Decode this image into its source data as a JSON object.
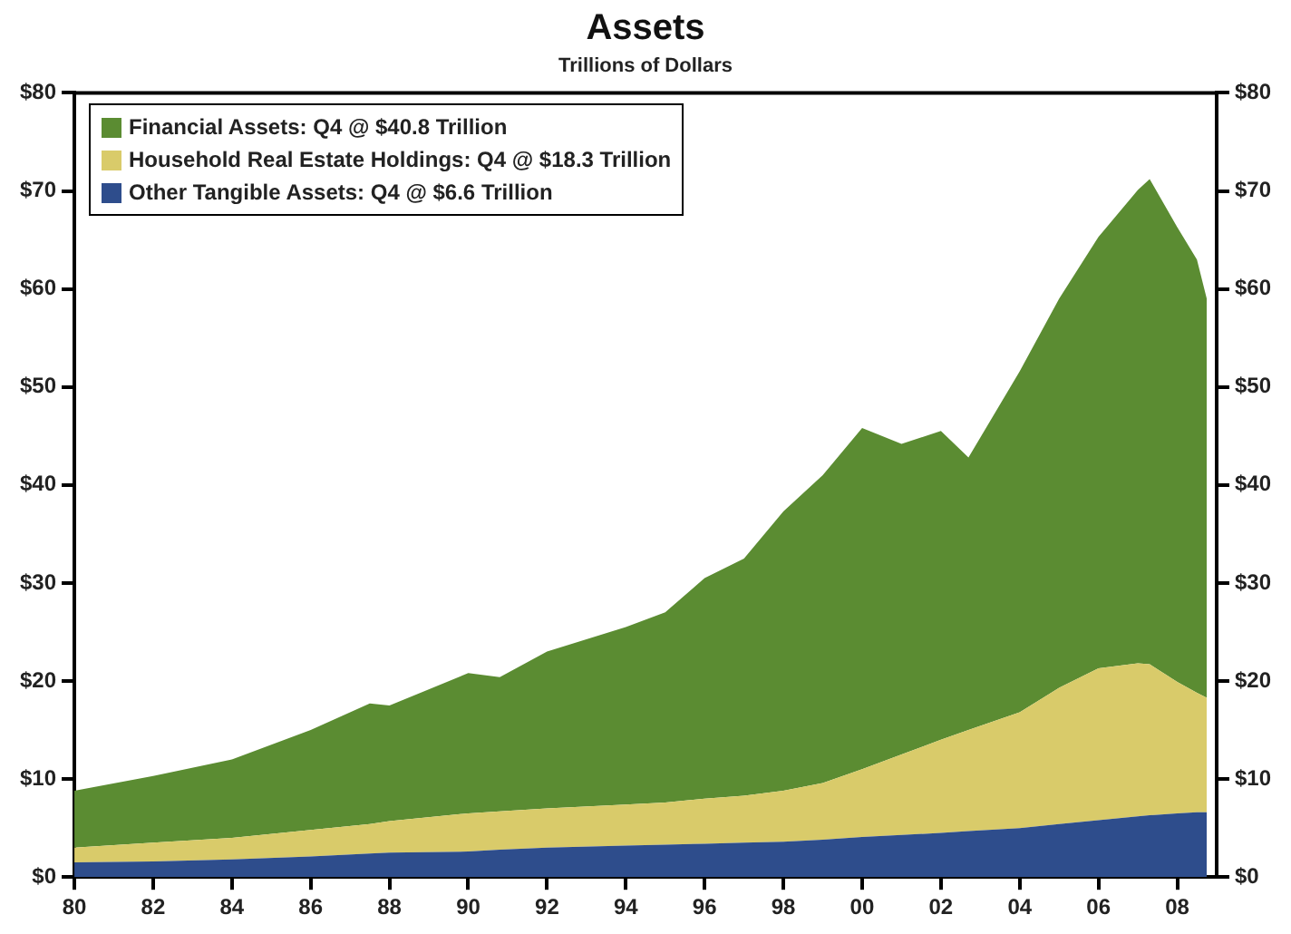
{
  "chart_data": {
    "type": "area",
    "stacked": true,
    "title": "Assets",
    "subtitle": "Trillions of Dollars",
    "x": [
      1980,
      1982,
      1984,
      1986,
      1987.5,
      1988,
      1990,
      1990.8,
      1992,
      1994,
      1995,
      1996,
      1997,
      1998,
      1999,
      2000,
      2001,
      2002,
      2002.7,
      2004,
      2005,
      2006,
      2007,
      2007.3,
      2008,
      2008.5,
      2008.75
    ],
    "series": [
      {
        "name": "Other Tangible Assets: Q4 @ $6.6 Trillion",
        "color": "#2e4d8c",
        "values": [
          1.5,
          1.6,
          1.8,
          2.1,
          2.4,
          2.5,
          2.6,
          2.8,
          3.0,
          3.2,
          3.3,
          3.4,
          3.5,
          3.6,
          3.8,
          4.1,
          4.3,
          4.5,
          4.7,
          5.0,
          5.4,
          5.8,
          6.2,
          6.3,
          6.5,
          6.6,
          6.6
        ]
      },
      {
        "name": "Household Real Estate Holdings: Q4 @ $18.3 Trillion",
        "color": "#d9cb6a",
        "values": [
          1.5,
          1.9,
          2.2,
          2.7,
          3.0,
          3.2,
          3.9,
          3.9,
          4.0,
          4.2,
          4.3,
          4.6,
          4.8,
          5.2,
          5.8,
          6.9,
          8.2,
          9.5,
          10.3,
          11.8,
          13.9,
          15.5,
          15.6,
          15.4,
          13.4,
          12.2,
          11.7
        ]
      },
      {
        "name": "Financial Assets: Q4 @ $40.8 Trillion",
        "color": "#5b8c32",
        "values": [
          5.8,
          6.8,
          8.0,
          10.2,
          12.3,
          11.8,
          14.3,
          13.7,
          16.0,
          18.1,
          19.4,
          22.5,
          24.2,
          28.5,
          31.4,
          34.8,
          31.7,
          31.5,
          27.8,
          34.8,
          39.7,
          44.0,
          48.3,
          49.5,
          46.4,
          44.2,
          40.7
        ]
      }
    ],
    "xlim": [
      1980,
      2009
    ],
    "xticks": [
      {
        "value": 1980,
        "label": "80"
      },
      {
        "value": 1982,
        "label": "82"
      },
      {
        "value": 1984,
        "label": "84"
      },
      {
        "value": 1986,
        "label": "86"
      },
      {
        "value": 1988,
        "label": "88"
      },
      {
        "value": 1990,
        "label": "90"
      },
      {
        "value": 1992,
        "label": "92"
      },
      {
        "value": 1994,
        "label": "94"
      },
      {
        "value": 1996,
        "label": "96"
      },
      {
        "value": 1998,
        "label": "98"
      },
      {
        "value": 2000,
        "label": "00"
      },
      {
        "value": 2002,
        "label": "02"
      },
      {
        "value": 2004,
        "label": "04"
      },
      {
        "value": 2006,
        "label": "06"
      },
      {
        "value": 2008,
        "label": "08"
      }
    ],
    "ylim": [
      0,
      80
    ],
    "yticks": [
      {
        "value": 0,
        "label": "$0"
      },
      {
        "value": 10,
        "label": "$10"
      },
      {
        "value": 20,
        "label": "$20"
      },
      {
        "value": 30,
        "label": "$30"
      },
      {
        "value": 40,
        "label": "$40"
      },
      {
        "value": 50,
        "label": "$50"
      },
      {
        "value": 60,
        "label": "$60"
      },
      {
        "value": 70,
        "label": "$70"
      },
      {
        "value": 80,
        "label": "$80"
      }
    ],
    "y2lim": [
      0,
      80
    ],
    "y2ticks": [
      {
        "value": 0,
        "label": "$0"
      },
      {
        "value": 10,
        "label": "$10"
      },
      {
        "value": 20,
        "label": "$20"
      },
      {
        "value": 30,
        "label": "$30"
      },
      {
        "value": 40,
        "label": "$40"
      },
      {
        "value": 50,
        "label": "$50"
      },
      {
        "value": 60,
        "label": "$60"
      },
      {
        "value": 70,
        "label": "$70"
      },
      {
        "value": 80,
        "label": "$80"
      }
    ],
    "grid": false,
    "legend": "top left"
  }
}
